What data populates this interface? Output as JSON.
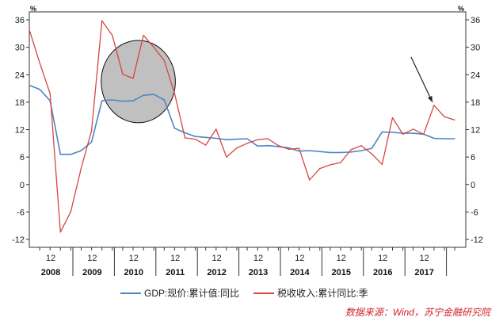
{
  "chart_data": {
    "type": "line",
    "title": "",
    "xlabel": "",
    "ylabel": "",
    "y_unit_left": "%",
    "y_unit_right": "%",
    "ylim": [
      -12,
      36
    ],
    "yticks": [
      36,
      30,
      24,
      18,
      12,
      6,
      0,
      -6,
      -12
    ],
    "x_tick_labels": [
      "12",
      "12",
      "12",
      "12",
      "12",
      "12",
      "12",
      "12",
      "12",
      "12"
    ],
    "years": [
      "2008",
      "2009",
      "2010",
      "2011",
      "2012",
      "2013",
      "2014",
      "2015",
      "2016",
      "2017"
    ],
    "x": [
      "2007Q4",
      "2008Q1",
      "2008Q2",
      "2008Q3",
      "2008Q4",
      "2009Q1",
      "2009Q2",
      "2009Q3",
      "2009Q4",
      "2010Q1",
      "2010Q2",
      "2010Q3",
      "2010Q4",
      "2011Q1",
      "2011Q2",
      "2011Q3",
      "2011Q4",
      "2012Q1",
      "2012Q2",
      "2012Q3",
      "2012Q4",
      "2013Q1",
      "2013Q2",
      "2013Q3",
      "2013Q4",
      "2014Q1",
      "2014Q2",
      "2014Q3",
      "2014Q4",
      "2015Q1",
      "2015Q2",
      "2015Q3",
      "2015Q4",
      "2016Q1",
      "2016Q2",
      "2016Q3",
      "2016Q4",
      "2017Q1",
      "2017Q2",
      "2017Q3",
      "2017Q4",
      "2018Q1"
    ],
    "series": [
      {
        "name": "GDP:现价:累计值:同比",
        "color": "#4a86c5",
        "values": [
          21.7,
          20.8,
          18.3,
          6.6,
          6.6,
          7.4,
          9.3,
          18.3,
          18.5,
          18.2,
          18.3,
          19.5,
          19.7,
          18.5,
          12.3,
          11.3,
          10.5,
          10.3,
          10.1,
          9.8,
          9.9,
          10.0,
          8.4,
          8.5,
          8.3,
          8.0,
          7.3,
          7.4,
          7.2,
          7.0,
          7.0,
          7.1,
          7.4,
          7.9,
          11.5,
          11.4,
          11.2,
          11.2,
          11.0,
          10.1,
          10.0,
          10.0
        ],
        "line_width": 1.6
      },
      {
        "name": "税收收入:累计同比:季",
        "color": "#d64541",
        "values": [
          33.8,
          26.6,
          19.9,
          -10.4,
          -5.9,
          3.6,
          11.8,
          35.8,
          32.6,
          24.1,
          23.2,
          32.6,
          30.0,
          27.1,
          19.9,
          10.2,
          9.9,
          8.6,
          12.1,
          6.0,
          8.0,
          9.0,
          9.8,
          10.0,
          8.5,
          7.7,
          7.9,
          1.0,
          3.5,
          4.3,
          4.8,
          7.6,
          8.5,
          6.7,
          4.4,
          14.6,
          11.0,
          12.1,
          11.0,
          17.3,
          14.8,
          14.1
        ],
        "line_width": 1.3
      }
    ],
    "annotations": [
      {
        "type": "ellipse",
        "description": "highlight",
        "x_range": [
          "2009Q3",
          "2011Q2"
        ],
        "y_range": [
          13.5,
          31.5
        ],
        "fill": "#c0c0c0"
      },
      {
        "type": "arrow",
        "target_x": "2017Q3",
        "target_y": 17.3
      }
    ],
    "grid": false,
    "legend_position": "bottom",
    "source_text": "数据来源：Wind，苏宁金融研究院"
  }
}
